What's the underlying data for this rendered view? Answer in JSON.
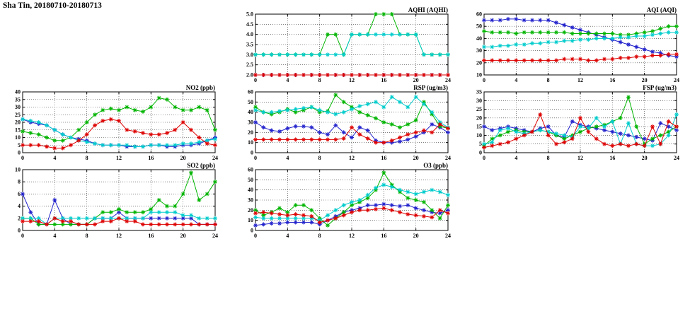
{
  "title": "Sha Tin, 20180710-20180713",
  "colors": {
    "blue": "#2222cc",
    "green": "#00b400",
    "cyan": "#00cccc",
    "red": "#dd0000"
  },
  "chart_data": [
    {
      "key": "aqhi",
      "type": "line",
      "title": "AQHI (AQHI)",
      "xlim": [
        0,
        24
      ],
      "xticks": [
        0,
        4,
        8,
        12,
        16,
        20,
        24
      ],
      "ylim": [
        2,
        5
      ],
      "yticks": [
        2,
        2.5,
        3,
        3.5,
        4,
        4.5,
        5
      ],
      "ytick_labels": [
        "2.0",
        "2.5",
        "3.0",
        "3.5",
        "4.0",
        "4.5",
        "5.0"
      ],
      "series": [
        {
          "name": "blue",
          "values": [
            2,
            2,
            2,
            2,
            2,
            2,
            2,
            2,
            2,
            2,
            2,
            2,
            2,
            2,
            2,
            2,
            2,
            2,
            2,
            2,
            2,
            2,
            2,
            2,
            2
          ]
        },
        {
          "name": "green",
          "values": [
            3,
            3,
            3,
            3,
            3,
            3,
            3,
            3,
            3,
            4,
            4,
            3,
            4,
            4,
            4,
            5,
            5,
            5,
            4,
            4,
            4,
            3,
            3,
            3,
            3
          ]
        },
        {
          "name": "cyan",
          "values": [
            3,
            3,
            3,
            3,
            3,
            3,
            3,
            3,
            3,
            3,
            3,
            3,
            4,
            4,
            4,
            4,
            4,
            4,
            4,
            4,
            4,
            3,
            3,
            3,
            3
          ]
        },
        {
          "name": "red",
          "values": [
            2,
            2,
            2,
            2,
            2,
            2,
            2,
            2,
            2,
            2,
            2,
            2,
            2,
            2,
            2,
            2,
            2,
            2,
            2,
            2,
            2,
            2,
            2,
            2,
            2
          ]
        }
      ]
    },
    {
      "key": "aqi",
      "type": "line",
      "title": "AQI (AQI)",
      "xlim": [
        0,
        24
      ],
      "xticks": [
        0,
        4,
        8,
        12,
        16,
        20,
        24
      ],
      "ylim": [
        10,
        60
      ],
      "yticks": [
        10,
        20,
        30,
        40,
        50,
        60
      ],
      "series": [
        {
          "name": "blue",
          "values": [
            55,
            55,
            55,
            56,
            56,
            55,
            55,
            55,
            55,
            53,
            51,
            49,
            47,
            45,
            43,
            41,
            39,
            37,
            35,
            33,
            31,
            29,
            28,
            26,
            25
          ]
        },
        {
          "name": "green",
          "values": [
            46,
            45,
            45,
            45,
            44,
            45,
            45,
            45,
            45,
            45,
            45,
            44,
            44,
            44,
            44,
            44,
            44,
            43,
            43,
            44,
            45,
            46,
            48,
            50,
            50
          ]
        },
        {
          "name": "cyan",
          "values": [
            33,
            33,
            34,
            34,
            35,
            35,
            36,
            36,
            37,
            37,
            38,
            38,
            39,
            39,
            40,
            40,
            40,
            41,
            41,
            42,
            42,
            43,
            44,
            45,
            45
          ]
        },
        {
          "name": "red",
          "values": [
            22,
            22,
            22,
            22,
            22,
            22,
            22,
            22,
            22,
            22,
            23,
            23,
            23,
            22,
            22,
            23,
            23,
            24,
            24,
            25,
            25,
            26,
            26,
            27,
            27
          ]
        }
      ]
    },
    {
      "key": "no2",
      "type": "line",
      "title": "NO2 (ppb)",
      "xlim": [
        0,
        24
      ],
      "xticks": [
        0,
        4,
        8,
        12,
        16,
        20,
        24
      ],
      "ylim": [
        0,
        40
      ],
      "yticks": [
        0,
        5,
        10,
        15,
        20,
        25,
        30,
        35,
        40
      ],
      "series": [
        {
          "name": "blue",
          "values": [
            22,
            20,
            19,
            18,
            15,
            12,
            10,
            9,
            8,
            6,
            5,
            5,
            5,
            4,
            4,
            4,
            5,
            5,
            4,
            4,
            5,
            5,
            6,
            8,
            10
          ]
        },
        {
          "name": "green",
          "values": [
            14,
            13,
            12,
            10,
            8,
            8,
            10,
            15,
            20,
            25,
            28,
            29,
            28,
            30,
            28,
            27,
            30,
            36,
            35,
            30,
            28,
            28,
            30,
            28,
            15
          ]
        },
        {
          "name": "cyan",
          "values": [
            22,
            21,
            20,
            18,
            15,
            12,
            10,
            8,
            7,
            6,
            5,
            5,
            5,
            5,
            4,
            4,
            5,
            5,
            5,
            5,
            6,
            6,
            7,
            8,
            9
          ]
        },
        {
          "name": "red",
          "values": [
            5,
            5,
            5,
            4,
            3,
            3,
            5,
            8,
            12,
            18,
            21,
            22,
            21,
            15,
            14,
            13,
            12,
            12,
            13,
            15,
            20,
            15,
            10,
            6,
            5
          ]
        }
      ]
    },
    {
      "key": "rsp",
      "type": "line",
      "title": "RSP (ug/m3)",
      "xlim": [
        0,
        24
      ],
      "xticks": [
        0,
        4,
        8,
        12,
        16,
        20,
        24
      ],
      "ylim": [
        0,
        60
      ],
      "yticks": [
        0,
        10,
        20,
        30,
        40,
        50,
        60
      ],
      "series": [
        {
          "name": "blue",
          "values": [
            30,
            25,
            22,
            21,
            24,
            26,
            26,
            25,
            20,
            18,
            27,
            20,
            15,
            25,
            22,
            12,
            10,
            10,
            11,
            13,
            16,
            20,
            28,
            25,
            20
          ]
        },
        {
          "name": "green",
          "values": [
            45,
            40,
            38,
            40,
            43,
            40,
            42,
            45,
            40,
            41,
            57,
            50,
            45,
            40,
            37,
            34,
            30,
            28,
            25,
            28,
            32,
            50,
            38,
            26,
            24
          ]
        },
        {
          "name": "cyan",
          "values": [
            42,
            40,
            40,
            41,
            42,
            43,
            44,
            45,
            42,
            40,
            38,
            40,
            43,
            46,
            48,
            50,
            45,
            55,
            50,
            45,
            55,
            48,
            40,
            30,
            25
          ]
        },
        {
          "name": "red",
          "values": [
            13,
            13,
            13,
            13,
            13,
            13,
            13,
            13,
            13,
            13,
            13,
            14,
            25,
            18,
            14,
            10,
            10,
            12,
            15,
            18,
            20,
            22,
            20,
            28,
            24
          ]
        }
      ]
    },
    {
      "key": "fsp",
      "type": "line",
      "title": "FSP (ug/m3)",
      "xlim": [
        0,
        24
      ],
      "xticks": [
        0,
        4,
        8,
        12,
        16,
        20,
        24
      ],
      "ylim": [
        0,
        35
      ],
      "yticks": [
        0,
        5,
        10,
        15,
        20,
        25,
        30,
        35
      ],
      "series": [
        {
          "name": "blue",
          "values": [
            15,
            13,
            14,
            15,
            14,
            13,
            12,
            14,
            15,
            10,
            9,
            18,
            16,
            15,
            14,
            13,
            12,
            11,
            10,
            9,
            8,
            7,
            17,
            15,
            13
          ]
        },
        {
          "name": "green",
          "values": [
            4,
            8,
            10,
            12,
            13,
            12,
            12,
            13,
            12,
            10,
            8,
            10,
            12,
            14,
            15,
            16,
            18,
            20,
            32,
            15,
            5,
            8,
            10,
            12,
            15
          ]
        },
        {
          "name": "cyan",
          "values": [
            5,
            6,
            13,
            14,
            12,
            11,
            12,
            13,
            12,
            11,
            10,
            9,
            15,
            14,
            20,
            15,
            18,
            5,
            17,
            5,
            4,
            4,
            5,
            10,
            22
          ]
        },
        {
          "name": "red",
          "values": [
            3,
            4,
            5,
            6,
            8,
            10,
            12,
            22,
            10,
            5,
            6,
            8,
            20,
            12,
            8,
            5,
            4,
            5,
            4,
            5,
            4,
            15,
            5,
            18,
            15
          ]
        }
      ]
    },
    {
      "key": "so2",
      "type": "line",
      "title": "SO2 (ppb)",
      "xlim": [
        0,
        24
      ],
      "xticks": [
        0,
        4,
        8,
        12,
        16,
        20,
        24
      ],
      "ylim": [
        0,
        10
      ],
      "yticks": [
        0,
        2,
        4,
        6,
        8,
        10
      ],
      "series": [
        {
          "name": "blue",
          "values": [
            6,
            3,
            1,
            1,
            5,
            2,
            1,
            1,
            1,
            2,
            2,
            2,
            3,
            2,
            2,
            2,
            2,
            2,
            2,
            2,
            2,
            2,
            1,
            1,
            1
          ]
        },
        {
          "name": "green",
          "values": [
            2,
            2,
            1,
            1,
            1,
            1,
            1,
            1,
            1,
            2,
            3,
            3,
            3.5,
            3,
            3,
            3,
            3.5,
            5,
            4,
            4,
            6,
            9.5,
            5,
            6,
            8
          ]
        },
        {
          "name": "cyan",
          "values": [
            2,
            2,
            2,
            1,
            2,
            2,
            2,
            2,
            2,
            2,
            2,
            2,
            2,
            2,
            2,
            2,
            3,
            3,
            3,
            3,
            2.5,
            2.5,
            2,
            2,
            2
          ]
        },
        {
          "name": "red",
          "values": [
            1.5,
            1.5,
            1.5,
            1,
            2,
            1.5,
            1.5,
            1,
            1,
            1,
            1.5,
            1.5,
            2,
            1.5,
            1.5,
            1,
            1,
            1,
            1,
            1,
            1,
            1,
            1,
            1,
            1
          ]
        }
      ]
    },
    {
      "key": "o3",
      "type": "line",
      "title": "O3 (ppb)",
      "xlim": [
        0,
        24
      ],
      "xticks": [
        0,
        4,
        8,
        12,
        16,
        20,
        24
      ],
      "ylim": [
        0,
        60
      ],
      "yticks": [
        0,
        10,
        20,
        30,
        40,
        50,
        60
      ],
      "series": [
        {
          "name": "blue",
          "values": [
            5,
            6,
            7,
            7,
            8,
            8,
            8,
            8,
            6,
            10,
            14,
            18,
            20,
            22,
            25,
            25,
            26,
            25,
            24,
            25,
            22,
            20,
            18,
            17,
            20
          ]
        },
        {
          "name": "green",
          "values": [
            20,
            15,
            18,
            22,
            18,
            25,
            25,
            20,
            12,
            5,
            12,
            18,
            25,
            28,
            32,
            40,
            57,
            45,
            38,
            32,
            30,
            28,
            20,
            12,
            25
          ]
        },
        {
          "name": "cyan",
          "values": [
            13,
            12,
            12,
            12,
            12,
            12,
            12,
            12,
            10,
            15,
            20,
            25,
            28,
            30,
            35,
            42,
            45,
            43,
            40,
            38,
            36,
            38,
            40,
            38,
            35
          ]
        },
        {
          "name": "red",
          "values": [
            17,
            18,
            17,
            16,
            15,
            16,
            15,
            14,
            8,
            10,
            12,
            15,
            18,
            20,
            20,
            21,
            22,
            20,
            18,
            16,
            15,
            14,
            13,
            20,
            17
          ]
        }
      ]
    }
  ]
}
